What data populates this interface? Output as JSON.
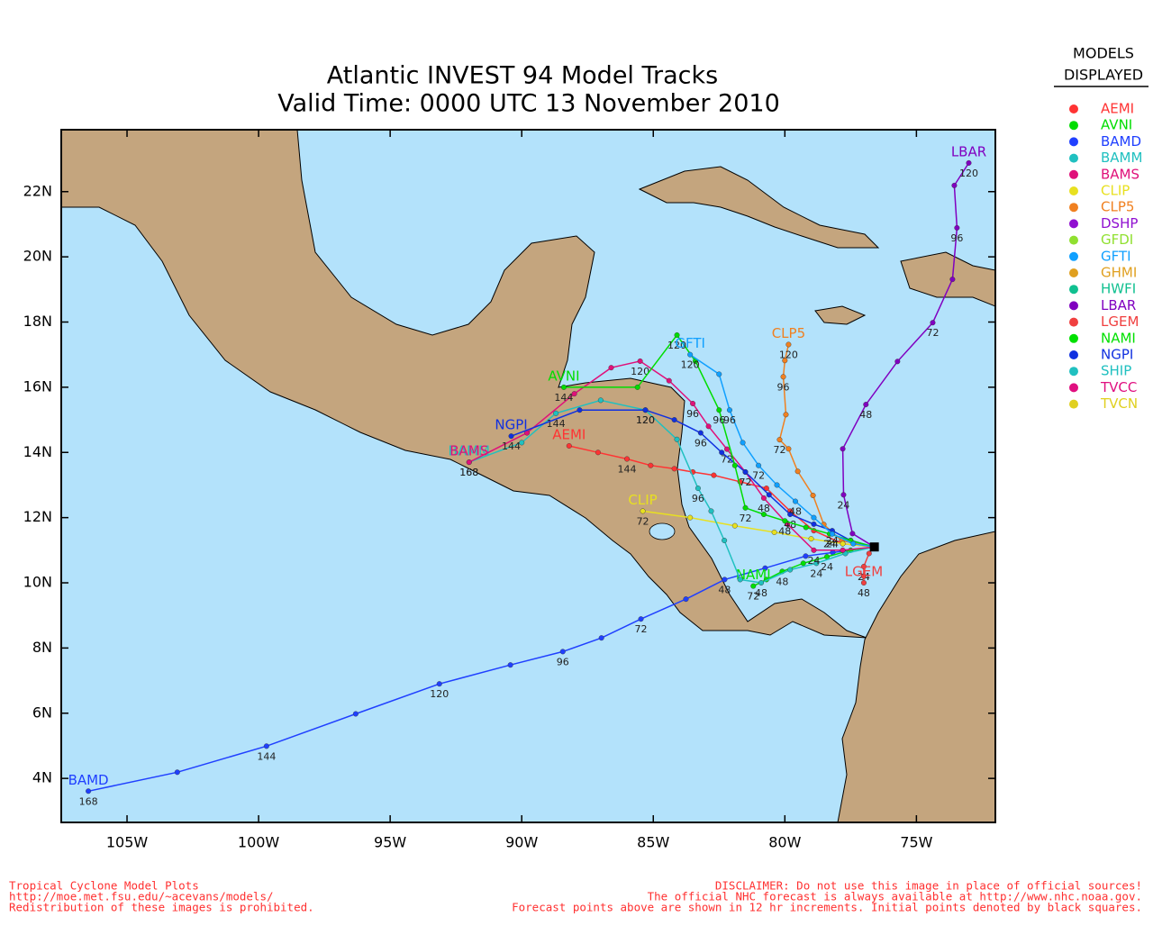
{
  "title": "Atlantic INVEST 94 Model Tracks",
  "subtitle": "Valid Time: 0000 UTC 13 November 2010",
  "map": {
    "xlim": [
      -107.5,
      -72
    ],
    "ylim": [
      2.65,
      23.9
    ],
    "xticks": [
      {
        "value": -105,
        "label": "105W"
      },
      {
        "value": -100,
        "label": "100W"
      },
      {
        "value": -95,
        "label": "95W"
      },
      {
        "value": -90,
        "label": "90W"
      },
      {
        "value": -85,
        "label": "85W"
      },
      {
        "value": -80,
        "label": "80W"
      },
      {
        "value": -75,
        "label": "75W"
      }
    ],
    "yticks": [
      {
        "value": 4,
        "label": "4N"
      },
      {
        "value": 6,
        "label": "6N"
      },
      {
        "value": 8,
        "label": "8N"
      },
      {
        "value": 10,
        "label": "10N"
      },
      {
        "value": 12,
        "label": "12N"
      },
      {
        "value": 14,
        "label": "14N"
      },
      {
        "value": 16,
        "label": "16N"
      },
      {
        "value": 18,
        "label": "18N"
      },
      {
        "value": 20,
        "label": "20N"
      },
      {
        "value": 22,
        "label": "22N"
      }
    ]
  },
  "legend": {
    "title_lines": [
      "MODELS",
      "DISPLAYED"
    ],
    "models": [
      {
        "name": "AEMI",
        "color": "#ff3333"
      },
      {
        "name": "AVNI",
        "color": "#00dd00"
      },
      {
        "name": "BAMD",
        "color": "#2040ff"
      },
      {
        "name": "BAMM",
        "color": "#20c0c0"
      },
      {
        "name": "BAMS",
        "color": "#e0107a"
      },
      {
        "name": "CLIP",
        "color": "#e8e020"
      },
      {
        "name": "CLP5",
        "color": "#f08020"
      },
      {
        "name": "DSHP",
        "color": "#9010d0"
      },
      {
        "name": "GFDI",
        "color": "#90e030"
      },
      {
        "name": "GFTI",
        "color": "#10a0ff"
      },
      {
        "name": "GHMI",
        "color": "#e0a020"
      },
      {
        "name": "HWFI",
        "color": "#10c090"
      },
      {
        "name": "LBAR",
        "color": "#8000c0"
      },
      {
        "name": "LGEM",
        "color": "#f04040"
      },
      {
        "name": "NAMI",
        "color": "#00e000"
      },
      {
        "name": "NGPI",
        "color": "#1030e0"
      },
      {
        "name": "SHIP",
        "color": "#20c0c0"
      },
      {
        "name": "TVCC",
        "color": "#e01080"
      },
      {
        "name": "TVCN",
        "color": "#e0d020"
      }
    ]
  },
  "tracks": [
    {
      "label": "BAMD",
      "color": "#2040ff",
      "lon": [
        -76.6,
        -78.18,
        -79.21,
        -80.75,
        -82.29,
        -83.76,
        -85.47,
        -86.97,
        -88.44,
        -90.43,
        -93.13,
        -96.31,
        -99.7,
        -103.09,
        -106.47
      ],
      "lat": [
        11.1,
        10.93,
        10.82,
        10.45,
        10.1,
        9.5,
        8.89,
        8.31,
        7.89,
        7.48,
        6.9,
        5.98,
        4.99,
        4.19,
        3.61
      ],
      "point_labels": [
        null,
        null,
        null,
        null,
        "48",
        null,
        "72",
        null,
        "96",
        null,
        "120",
        null,
        "144",
        null,
        "168"
      ]
    },
    {
      "label": "LBAR",
      "color": "#8000c0",
      "lon": [
        -76.6,
        -77.43,
        -77.77,
        -77.8,
        -76.92,
        -75.72,
        -74.38,
        -73.63,
        -73.46,
        -73.56,
        -73.01
      ],
      "lat": [
        11.1,
        11.51,
        12.7,
        14.11,
        15.47,
        16.79,
        17.98,
        19.31,
        20.89,
        22.19,
        22.88
      ],
      "point_labels": [
        null,
        null,
        "24",
        null,
        "48",
        null,
        "72",
        null,
        "96",
        null,
        "120"
      ]
    },
    {
      "label": "CLP5",
      "color": "#f08020",
      "lon": [
        -76.6,
        -77.84,
        -78.52,
        -78.93,
        -79.51,
        -79.86,
        -80.2,
        -79.96,
        -80.06,
        -80.0,
        -79.86
      ],
      "lat": [
        11.1,
        11.29,
        11.79,
        12.68,
        13.42,
        14.11,
        14.39,
        15.16,
        16.32,
        16.82,
        17.31
      ],
      "point_labels": [
        null,
        null,
        null,
        null,
        null,
        null,
        "72",
        null,
        "96",
        null,
        "120"
      ]
    },
    {
      "label": "AEMI",
      "color": "#ff3333",
      "lon": [
        -76.6,
        -77.8,
        -78.9,
        -79.8,
        -80.7,
        -81.7,
        -82.7,
        -83.5,
        -84.2,
        -85.1,
        -86.0,
        -87.1,
        -88.2
      ],
      "lat": [
        11.1,
        11.2,
        11.6,
        12.2,
        12.9,
        13.1,
        13.3,
        13.4,
        13.5,
        13.6,
        13.8,
        14.0,
        14.2
      ],
      "point_labels": [
        null,
        null,
        null,
        null,
        null,
        null,
        null,
        null,
        null,
        null,
        "144",
        null,
        null
      ]
    },
    {
      "label": "CLIP",
      "color": "#e8e020",
      "lon": [
        -76.6,
        -77.8,
        -79.0,
        -80.4,
        -81.9,
        -83.6,
        -85.4
      ],
      "lat": [
        11.1,
        11.2,
        11.35,
        11.55,
        11.75,
        12.0,
        12.2
      ],
      "point_labels": [
        null,
        null,
        null,
        null,
        null,
        null,
        "72"
      ]
    },
    {
      "label": "NAMI",
      "color": "#00e000",
      "lon": [
        -76.6,
        -77.5,
        -78.4,
        -79.3,
        -80.1,
        -80.7,
        -81.2
      ],
      "lat": [
        11.1,
        11.0,
        10.8,
        10.6,
        10.35,
        10.1,
        9.9
      ],
      "point_labels": [
        null,
        null,
        "24",
        null,
        "48",
        null,
        "72"
      ]
    },
    {
      "label": "BAMM",
      "color": "#20c0c0",
      "lon": [
        -76.6,
        -77.7,
        -78.8,
        -79.8,
        -80.9,
        -81.7,
        -82.3,
        -82.8,
        -83.3,
        -84.1,
        -85.3,
        -87.0,
        -88.7,
        -90.0,
        -92.0
      ],
      "lat": [
        11.1,
        10.9,
        10.6,
        10.4,
        10.0,
        10.1,
        11.3,
        12.2,
        12.9,
        14.4,
        15.3,
        15.6,
        15.2,
        14.3,
        13.7
      ],
      "point_labels": [
        null,
        null,
        "24",
        null,
        "48",
        null,
        null,
        null,
        "96",
        null,
        "120",
        null,
        "144",
        null,
        "168"
      ]
    },
    {
      "label": "BAMS",
      "color": "#e0107a",
      "lon": [
        -76.6,
        -77.8,
        -78.9,
        -79.9,
        -80.8,
        -81.5,
        -82.2,
        -82.9,
        -83.5,
        -84.4,
        -85.5,
        -86.6,
        -88.0,
        -89.8,
        -92.0
      ],
      "lat": [
        11.1,
        11.0,
        11.0,
        11.8,
        12.6,
        13.4,
        14.1,
        14.8,
        15.5,
        16.2,
        16.8,
        16.6,
        15.8,
        14.6,
        13.7
      ],
      "point_labels": [
        null,
        null,
        "24",
        null,
        "48",
        null,
        "72",
        null,
        "96",
        null,
        "120",
        null,
        null,
        null,
        "168"
      ]
    },
    {
      "label": "NGPI",
      "color": "#1030e0",
      "lon": [
        -76.6,
        -77.5,
        -78.2,
        -78.9,
        -79.8,
        -80.6,
        -81.5,
        -82.4,
        -83.2,
        -84.2,
        -85.3,
        -87.8,
        -90.4
      ],
      "lat": [
        11.1,
        11.3,
        11.6,
        11.8,
        12.1,
        12.7,
        13.4,
        14.0,
        14.6,
        15.0,
        15.3,
        15.3,
        14.5
      ],
      "point_labels": [
        null,
        null,
        "24",
        null,
        "48",
        null,
        "72",
        null,
        "96",
        null,
        "120",
        null,
        "144"
      ]
    },
    {
      "label": "AVNI",
      "color": "#00dd00",
      "lon": [
        -76.6,
        -77.5,
        -78.3,
        -79.2,
        -80.0,
        -80.8,
        -81.5,
        -81.9,
        -82.5,
        -83.4,
        -84.1,
        -85.6,
        -88.4
      ],
      "lat": [
        11.1,
        11.3,
        11.5,
        11.7,
        11.9,
        12.1,
        12.3,
        13.6,
        15.3,
        16.8,
        17.6,
        16.0,
        16.0
      ],
      "point_labels": [
        null,
        null,
        "24",
        null,
        "48",
        null,
        "72",
        null,
        "96",
        null,
        "120",
        null,
        "144"
      ]
    },
    {
      "label": "GFTI",
      "color": "#10a0ff",
      "lon": [
        -76.6,
        -77.4,
        -78.2,
        -78.9,
        -79.6,
        -80.3,
        -81.0,
        -81.6,
        -82.1,
        -82.5,
        -83.6
      ],
      "lat": [
        11.1,
        11.2,
        11.5,
        12.0,
        12.5,
        13.0,
        13.6,
        14.3,
        15.3,
        16.4,
        17.0
      ],
      "point_labels": [
        null,
        null,
        "24",
        null,
        "48",
        null,
        "72",
        null,
        "96",
        null,
        "120"
      ]
    },
    {
      "label": "LGEM",
      "color": "#f04040",
      "lon": [
        -76.6,
        -76.8,
        -77.0,
        -77.0,
        -77.0
      ],
      "lat": [
        11.1,
        10.9,
        10.5,
        10.2,
        10.0
      ],
      "point_labels": [
        null,
        null,
        "24",
        null,
        "48"
      ]
    }
  ],
  "footer_left": [
    "Tropical Cyclone Model Plots",
    "http://moe.met.fsu.edu/~acevans/models/",
    "Redistribution of these images is prohibited."
  ],
  "footer_right": [
    "DISCLAIMER: Do not use this image in place of official sources!",
    "The official NHC forecast is always available at http://www.nhc.noaa.gov.",
    "Forecast points above are shown in 12 hr increments. Initial points denoted by black squares."
  ]
}
